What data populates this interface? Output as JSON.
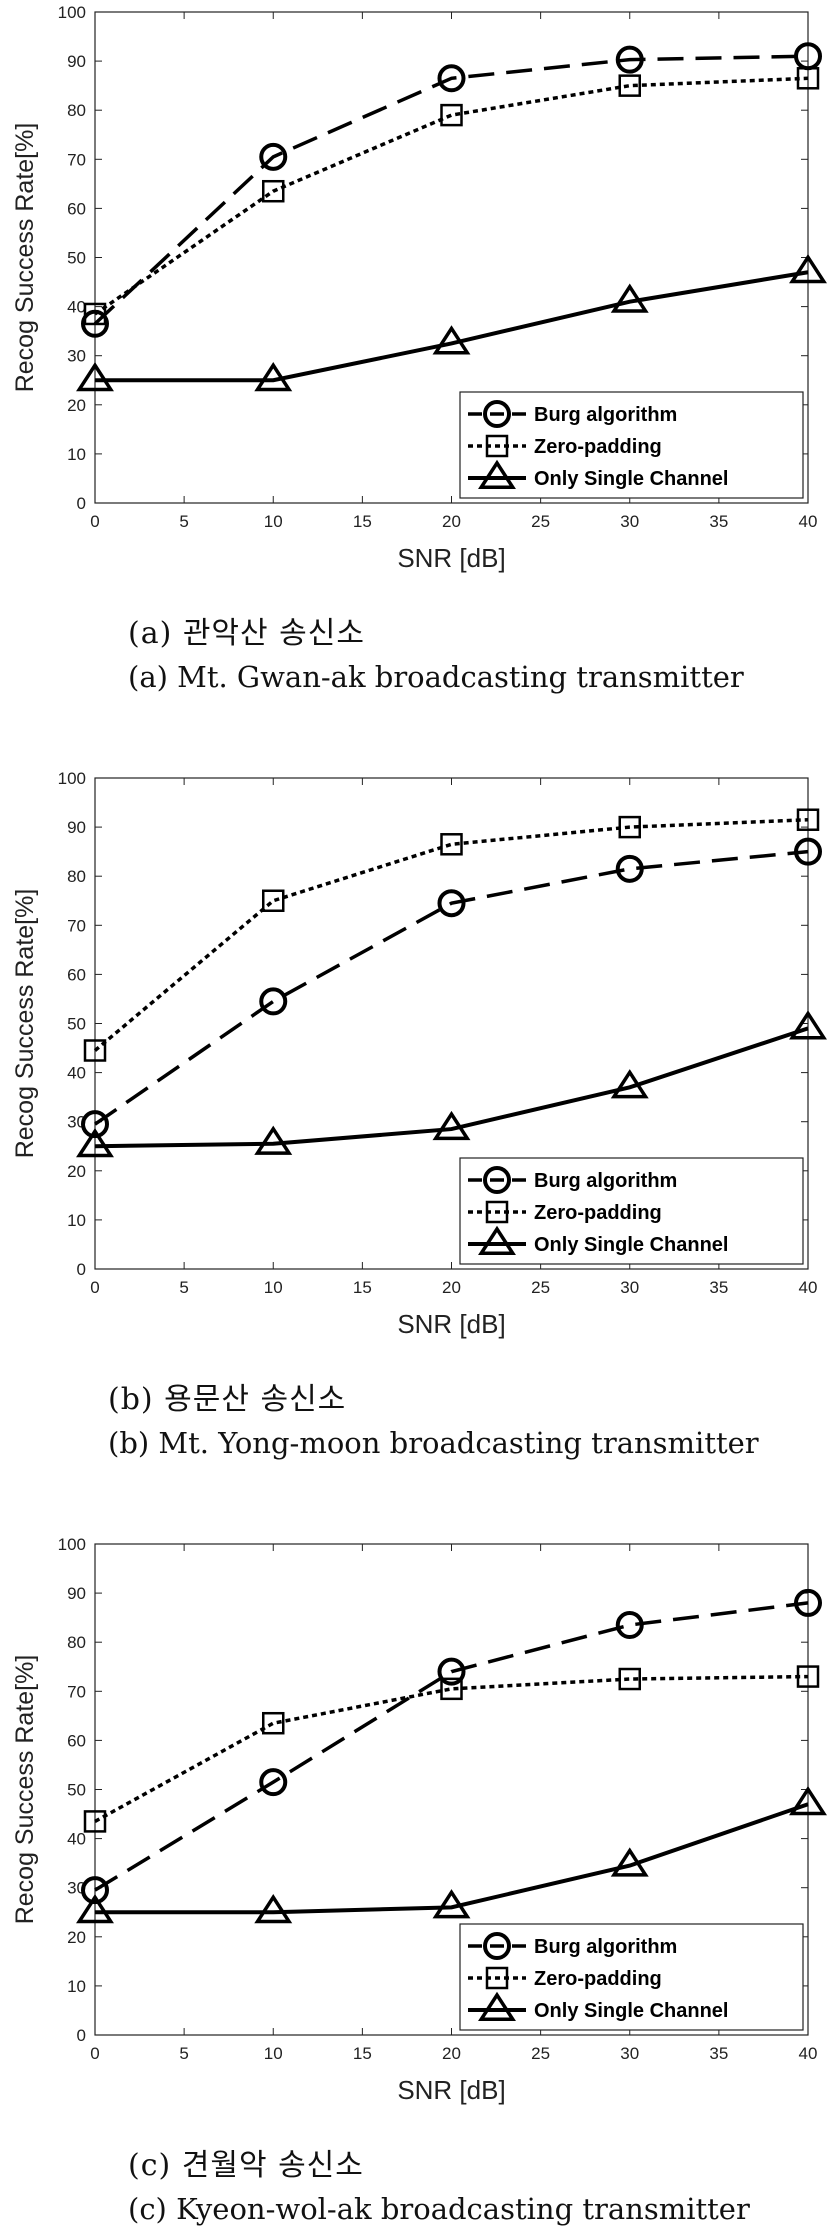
{
  "chart_data": [
    {
      "type": "line",
      "title": "",
      "xlabel": "SNR [dB]",
      "ylabel": "Recog Success Rate[%]",
      "xlim": [
        0,
        40
      ],
      "ylim": [
        0,
        100
      ],
      "xticks": [
        0,
        5,
        10,
        15,
        20,
        25,
        30,
        35,
        40
      ],
      "yticks": [
        0,
        10,
        20,
        30,
        40,
        50,
        60,
        70,
        80,
        90,
        100
      ],
      "grid": false,
      "legend_position": "bottom-right",
      "x": [
        0,
        10,
        20,
        30,
        40
      ],
      "series": [
        {
          "name": "Burg algorithm",
          "marker": "circle",
          "style": "dashed",
          "values": [
            36.5,
            70.5,
            86.5,
            90.3,
            91
          ]
        },
        {
          "name": "Zero-padding",
          "marker": "square",
          "style": "dotted",
          "values": [
            38.5,
            63.5,
            79,
            85,
            86.5
          ]
        },
        {
          "name": "Only Single Channel",
          "marker": "triangle",
          "style": "solid",
          "values": [
            25,
            25,
            32.5,
            41,
            47
          ]
        }
      ],
      "caption_ko": "(a) 관악산 송신소",
      "caption_en": "(a) Mt. Gwan-ak broadcasting transmitter"
    },
    {
      "type": "line",
      "title": "",
      "xlabel": "SNR [dB]",
      "ylabel": "Recog Success Rate[%]",
      "xlim": [
        0,
        40
      ],
      "ylim": [
        0,
        100
      ],
      "xticks": [
        0,
        5,
        10,
        15,
        20,
        25,
        30,
        35,
        40
      ],
      "yticks": [
        0,
        10,
        20,
        30,
        40,
        50,
        60,
        70,
        80,
        90,
        100
      ],
      "grid": false,
      "legend_position": "bottom-right",
      "x": [
        0,
        10,
        20,
        30,
        40
      ],
      "series": [
        {
          "name": "Burg algorithm",
          "marker": "circle",
          "style": "dashed",
          "values": [
            29.5,
            54.5,
            74.5,
            81.5,
            85
          ]
        },
        {
          "name": "Zero-padding",
          "marker": "square",
          "style": "dotted",
          "values": [
            44.5,
            75,
            86.5,
            90,
            91.5
          ]
        },
        {
          "name": "Only Single Channel",
          "marker": "triangle",
          "style": "solid",
          "values": [
            25,
            25.5,
            28.5,
            37,
            49
          ]
        }
      ],
      "caption_ko": "(b) 용문산 송신소",
      "caption_en": "(b) Mt. Yong-moon broadcasting transmitter"
    },
    {
      "type": "line",
      "title": "",
      "xlabel": "SNR [dB]",
      "ylabel": "Recog Success Rate[%]",
      "xlim": [
        0,
        40
      ],
      "ylim": [
        0,
        100
      ],
      "xticks": [
        0,
        5,
        10,
        15,
        20,
        25,
        30,
        35,
        40
      ],
      "yticks": [
        0,
        10,
        20,
        30,
        40,
        50,
        60,
        70,
        80,
        90,
        100
      ],
      "grid": false,
      "legend_position": "bottom-right",
      "x": [
        0,
        10,
        20,
        30,
        40
      ],
      "series": [
        {
          "name": "Burg algorithm",
          "marker": "circle",
          "style": "dashed",
          "values": [
            29.5,
            51.5,
            74,
            83.5,
            88
          ]
        },
        {
          "name": "Zero-padding",
          "marker": "square",
          "style": "dotted",
          "values": [
            43.5,
            63.5,
            70.5,
            72.5,
            73
          ]
        },
        {
          "name": "Only Single Channel",
          "marker": "triangle",
          "style": "solid",
          "values": [
            25,
            25,
            26,
            34.5,
            47
          ]
        }
      ],
      "caption_ko": "(c) 견월악 송신소",
      "caption_en": "(c) Kyeon-wol-ak broadcasting transmitter"
    }
  ]
}
